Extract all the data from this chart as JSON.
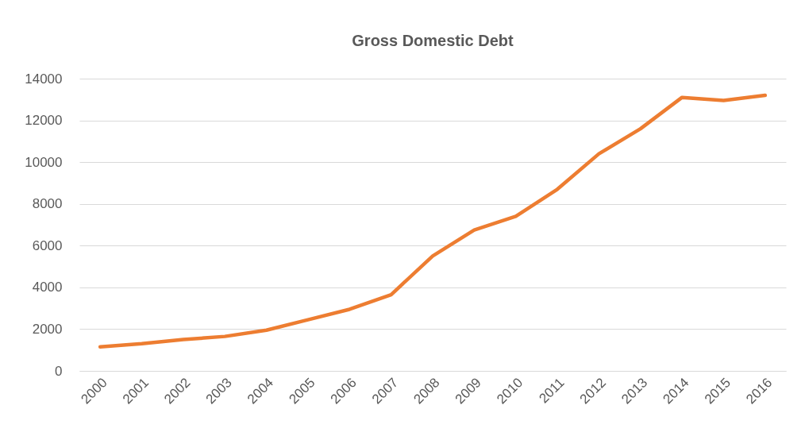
{
  "chart_data": {
    "type": "line",
    "title": "Gross Domestic Debt",
    "categories": [
      "2000",
      "2001",
      "2002",
      "2003",
      "2004",
      "2005",
      "2006",
      "2007",
      "2008",
      "2009",
      "2010",
      "2011",
      "2012",
      "2013",
      "2014",
      "2015",
      "2016"
    ],
    "series": [
      {
        "color": "#ed7d31",
        "values": [
          1150,
          1300,
          1500,
          1650,
          1950,
          2450,
          2950,
          3650,
          5500,
          6750,
          7400,
          8700,
          10400,
          11600,
          13100,
          12950,
          13200
        ]
      }
    ],
    "ylim": [
      0,
      14000
    ],
    "yticks": [
      0,
      2000,
      4000,
      6000,
      8000,
      10000,
      12000,
      14000
    ],
    "grid": "y",
    "marker": "none",
    "line_style": "solid"
  }
}
